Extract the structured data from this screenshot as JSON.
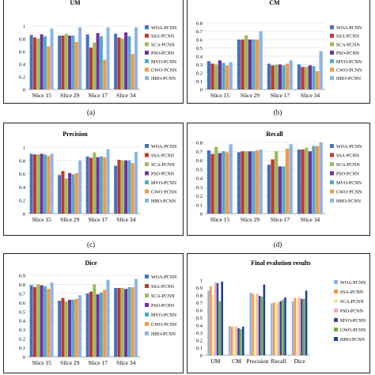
{
  "colors": [
    "#4472C4",
    "#C0392B",
    "#9BBB59",
    "#7030A0",
    "#4BACC6",
    "#F79646",
    "#8EB4E3"
  ],
  "colors_final": [
    "#8EB4E3",
    "#F79646",
    "#FBE5A2",
    "#F2A9C0",
    "#2E4D8F",
    "#70AD47",
    "#1F3D99"
  ],
  "captions": [
    "(a)",
    "(b)",
    "(c)",
    "(d)"
  ],
  "chart_data": [
    {
      "type": "bar",
      "title": "UM",
      "categories": [
        "Slice 15",
        "Slice 29",
        "Slice 17",
        "Slice 34"
      ],
      "ylim": [
        0,
        1
      ],
      "yticks": [
        "0",
        "0.2",
        "0.4",
        "0.6",
        "0.8",
        "1"
      ],
      "ytick_values": [
        0,
        0.2,
        0.4,
        0.6,
        0.8,
        1
      ],
      "grid": true,
      "legend": "right",
      "series": [
        {
          "name": "WOA-PCNN",
          "values": [
            0.86,
            0.85,
            0.87,
            0.88
          ]
        },
        {
          "name": "SSA-PCNN",
          "values": [
            0.82,
            0.85,
            0.66,
            0.82
          ]
        },
        {
          "name": "SCA-PCNN",
          "values": [
            0.8,
            0.88,
            0.74,
            0.8
          ]
        },
        {
          "name": "PSO-PCNN",
          "values": [
            0.87,
            0.85,
            0.89,
            0.9
          ]
        },
        {
          "name": "MVO-PCNN",
          "values": [
            0.84,
            0.85,
            0.84,
            0.84
          ]
        },
        {
          "name": "GWO-PCNN",
          "values": [
            0.68,
            0.75,
            0.47,
            0.56
          ]
        },
        {
          "name": "HHO-PCNN",
          "values": [
            0.96,
            0.98,
            0.98,
            0.98
          ]
        }
      ]
    },
    {
      "type": "bar",
      "title": "CM",
      "categories": [
        "Slice 15",
        "Slice 29",
        "Slice 17",
        "Slice 34"
      ],
      "ylim": [
        0,
        0.8
      ],
      "yticks": [
        "0",
        "0.1",
        "0.2",
        "0.3",
        "0.4",
        "0.5",
        "0.6",
        "0.7",
        "0.8"
      ],
      "ytick_values": [
        0,
        0.1,
        0.2,
        0.3,
        0.4,
        0.5,
        0.6,
        0.7,
        0.8
      ],
      "grid": true,
      "legend": "right",
      "series": [
        {
          "name": "WOA-PCNN",
          "values": [
            0.34,
            0.6,
            0.31,
            0.3
          ]
        },
        {
          "name": "SSA-PCNN",
          "values": [
            0.31,
            0.6,
            0.29,
            0.27
          ]
        },
        {
          "name": "SCA-PCNN",
          "values": [
            0.3,
            0.65,
            0.3,
            0.27
          ]
        },
        {
          "name": "PSO-PCNN",
          "values": [
            0.35,
            0.6,
            0.3,
            0.29
          ]
        },
        {
          "name": "MVO-PCNN",
          "values": [
            0.32,
            0.6,
            0.29,
            0.28
          ]
        },
        {
          "name": "GWO-PCNN",
          "values": [
            0.29,
            0.6,
            0.31,
            0.22
          ]
        },
        {
          "name": "HHO-PCNN",
          "values": [
            0.33,
            0.7,
            0.35,
            0.46
          ]
        }
      ]
    },
    {
      "type": "bar",
      "title": "Precision",
      "categories": [
        "Slice 15",
        "Slice 29",
        "Slice 17",
        "Slice 34"
      ],
      "ylim": [
        0,
        1
      ],
      "yticks": [
        "0",
        "0.2",
        "0.4",
        "0.6",
        "0.8",
        "1"
      ],
      "ytick_values": [
        0,
        0.2,
        0.4,
        0.6,
        0.8,
        1
      ],
      "grid": true,
      "legend": "right",
      "series": [
        {
          "name": "WOA-PCNN",
          "values": [
            0.9,
            0.58,
            0.86,
            0.72
          ]
        },
        {
          "name": "SSA-PCNN",
          "values": [
            0.89,
            0.64,
            0.84,
            0.81
          ]
        },
        {
          "name": "SCA-PCNN",
          "values": [
            0.89,
            0.53,
            0.92,
            0.8
          ]
        },
        {
          "name": "PSO-PCNN",
          "values": [
            0.9,
            0.61,
            0.85,
            0.8
          ]
        },
        {
          "name": "MVO-PCNN",
          "values": [
            0.89,
            0.59,
            0.86,
            0.8
          ]
        },
        {
          "name": "GWO-PCNN",
          "values": [
            0.87,
            0.61,
            0.85,
            0.76
          ]
        },
        {
          "name": "HHO-PCNN",
          "values": [
            0.9,
            0.8,
            0.97,
            0.93
          ]
        }
      ]
    },
    {
      "type": "bar",
      "title": "Recall",
      "categories": [
        "Slice 15",
        "Slice 29",
        "Slice 17",
        "Slice 34"
      ],
      "ylim": [
        0,
        0.8
      ],
      "yticks": [
        "0",
        "0.1",
        "0.2",
        "0.3",
        "0.4",
        "0.5",
        "0.6",
        "0.7",
        "0.8"
      ],
      "ytick_values": [
        0,
        0.1,
        0.2,
        0.3,
        0.4,
        0.5,
        0.6,
        0.7,
        0.8
      ],
      "grid": true,
      "legend": "right",
      "series": [
        {
          "name": "WOA-PCNN",
          "values": [
            0.71,
            0.69,
            0.55,
            0.72
          ]
        },
        {
          "name": "SSA-PCNN",
          "values": [
            0.67,
            0.7,
            0.61,
            0.72
          ]
        },
        {
          "name": "SCA-PCNN",
          "values": [
            0.75,
            0.7,
            0.7,
            0.74
          ]
        },
        {
          "name": "PSO-PCNN",
          "values": [
            0.68,
            0.7,
            0.53,
            0.7
          ]
        },
        {
          "name": "MVO-PCNN",
          "values": [
            0.7,
            0.7,
            0.53,
            0.76
          ]
        },
        {
          "name": "GWO-PCNN",
          "values": [
            0.69,
            0.71,
            0.73,
            0.76
          ]
        },
        {
          "name": "HHO-PCNN",
          "values": [
            0.78,
            0.72,
            0.78,
            0.8
          ]
        }
      ]
    },
    {
      "type": "bar",
      "title": "Dice",
      "categories": [
        "Slice 15",
        "Slice 29",
        "Slice 17",
        "Slice 34"
      ],
      "ylim": [
        0,
        0.9
      ],
      "yticks": [
        "0",
        "0.1",
        "0.2",
        "0.3",
        "0.4",
        "0.5",
        "0.6",
        "0.7",
        "0.8",
        "0.9"
      ],
      "ytick_values": [
        0,
        0.1,
        0.2,
        0.3,
        0.4,
        0.5,
        0.6,
        0.7,
        0.8,
        0.9
      ],
      "grid": true,
      "legend": "right",
      "series": [
        {
          "name": "WOA-PCNN",
          "values": [
            0.79,
            0.62,
            0.7,
            0.76
          ]
        },
        {
          "name": "SSA-PCNN",
          "values": [
            0.77,
            0.65,
            0.72,
            0.76
          ]
        },
        {
          "name": "SCA-PCNN",
          "values": [
            0.8,
            0.61,
            0.8,
            0.76
          ]
        },
        {
          "name": "PSO-PCNN",
          "values": [
            0.79,
            0.63,
            0.69,
            0.75
          ]
        },
        {
          "name": "MVO-PCNN",
          "values": [
            0.78,
            0.63,
            0.71,
            0.77
          ]
        },
        {
          "name": "GWO-PCNN",
          "values": [
            0.75,
            0.64,
            0.74,
            0.77
          ]
        },
        {
          "name": "HHO-PCNN",
          "values": [
            0.82,
            0.68,
            0.85,
            0.86
          ]
        }
      ]
    },
    {
      "type": "bar",
      "title": "Final evalution results",
      "categories": [
        "UM",
        "CM",
        "Precision",
        "Recall",
        "Dice"
      ],
      "ylim": [
        0,
        1
      ],
      "yticks": [
        "0",
        "0.1",
        "0.2",
        "0.3",
        "0.4",
        "0.5",
        "0.6",
        "0.7",
        "0.8",
        "0.9",
        "1"
      ],
      "ytick_values": [
        0,
        0.1,
        0.2,
        0.3,
        0.4,
        0.5,
        0.6,
        0.7,
        0.8,
        0.9,
        1
      ],
      "grid": false,
      "legend": "right",
      "series": [
        {
          "name": "WOA-PCNN",
          "values": [
            0.86,
            0.39,
            0.83,
            0.69,
            0.72
          ]
        },
        {
          "name": "SSA-PCNN",
          "values": [
            0.92,
            0.38,
            0.82,
            0.7,
            0.76
          ]
        },
        {
          "name": "SCA-PCNN",
          "values": [
            0.8,
            0.39,
            0.78,
            0.72,
            0.75
          ]
        },
        {
          "name": "PSO-PCNN",
          "values": [
            0.97,
            0.38,
            0.82,
            0.7,
            0.77
          ]
        },
        {
          "name": "MVO-PCNN",
          "values": [
            0.96,
            0.36,
            0.79,
            0.72,
            0.75
          ]
        },
        {
          "name": "GWO-PCNN",
          "values": [
            0.72,
            0.35,
            0.78,
            0.74,
            0.75
          ]
        },
        {
          "name": "HHO-PCNN",
          "values": [
            0.98,
            0.38,
            0.94,
            0.77,
            0.86
          ]
        }
      ]
    }
  ]
}
